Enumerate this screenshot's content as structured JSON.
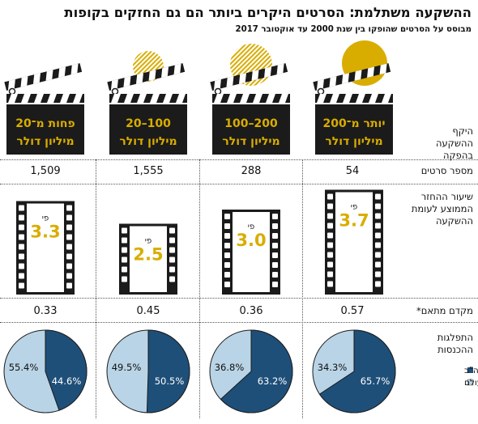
{
  "title": "ההשקעה משתלמת: הסרטים היקרים ביותר הם גם החזקים בקופות",
  "subtitle": "מבוסס על הסרטים שהופקו בין שנת 2000 עד אוקטובר 2017",
  "row_labels": {
    "budget": "היקף ההשקעה בהפקה",
    "count": "מספר סרטים",
    "multiple": "שיעור ההחזר הממוצע לעומת ההשקעה",
    "coefficient": "מקדם מתאם*",
    "split": "התפלגות ההכנסות"
  },
  "colors": {
    "gold": "#d9ad00",
    "clapper": "#1b1b1b",
    "dark_blue": "#1e4f79",
    "light_blue": "#b9d4e6"
  },
  "chart_data": {
    "type": "table",
    "columns": [
      {
        "budget_line1": "יותר מ־200",
        "budget_line2": "מיליון דולר",
        "films": "54",
        "multiple_prefix": "פי",
        "multiple": 3.7,
        "coefficient": "0.57",
        "usa": 65.7,
        "world": 34.3
      },
      {
        "budget_line1": "200–100",
        "budget_line2": "מיליון דולר",
        "films": "288",
        "multiple_prefix": "פי",
        "multiple": 3.0,
        "coefficient": "0.36",
        "usa": 63.2,
        "world": 36.8
      },
      {
        "budget_line1": "100–20",
        "budget_line2": "מיליון דולר",
        "films": "1,555",
        "multiple_prefix": "פי",
        "multiple": 2.5,
        "coefficient": "0.45",
        "usa": 50.5,
        "world": 49.5
      },
      {
        "budget_line1": "פחות מ־20",
        "budget_line2": "מיליון דולר",
        "films": "1,509",
        "multiple_prefix": "פי",
        "multiple": 3.3,
        "coefficient": "0.33",
        "usa": 44.6,
        "world": 55.4
      }
    ],
    "multiple_labels": [
      "3.7",
      "3.0",
      "2.5",
      "3.3"
    ],
    "legend": [
      "ארה\"ב",
      "שאר העולם"
    ]
  }
}
